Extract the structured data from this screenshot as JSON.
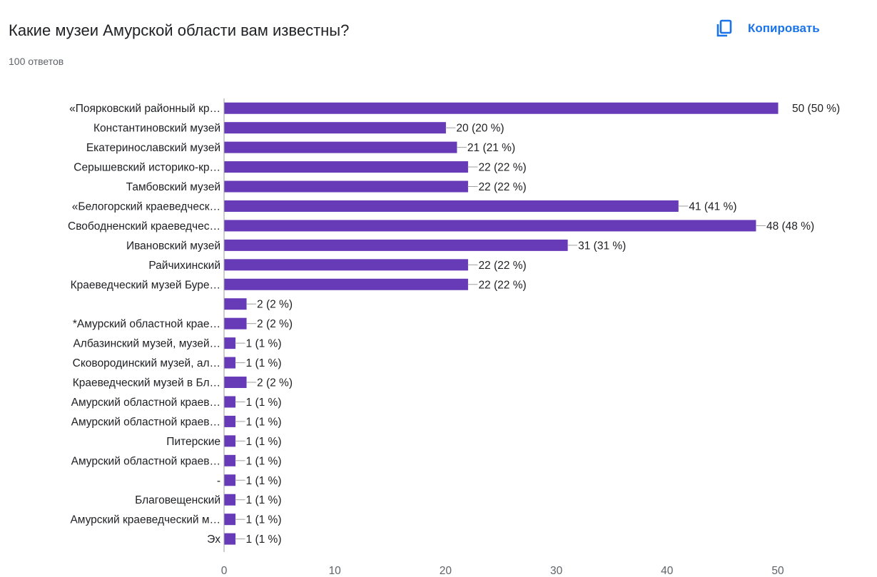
{
  "header": {
    "title": "Какие музеи Амурской области вам известны?",
    "response_count": "100 ответов",
    "copy_label": "Копировать",
    "copy_icon": "copy-icon"
  },
  "colors": {
    "bar": "#673ab7",
    "accent": "#1a73e8",
    "axis": "#9e9e9e",
    "grid": "#e0e0e0"
  },
  "chart_data": {
    "type": "bar",
    "orientation": "horizontal",
    "title": "Какие музеи Амурской области вам известны?",
    "categories": [
      "«Поярковский районный кр…",
      "Константиновский музей",
      "Екатеринославский музей",
      "Серышевский историко-кр…",
      "Тамбовский музей",
      "«Белогорский краеведческ…",
      "Свободненский краеведчес…",
      "Ивановский музей",
      "Райчихинский",
      "Краеведческий музей Буре…",
      "",
      "*Амурский областной крае…",
      "Албазинский музей, музей…",
      "Сковородинский музей, ал…",
      "Краеведческий музей в Бл…",
      "Амурский областной краев…",
      "Амурский областной краев…",
      "Питерские",
      "Амурский областной краев…",
      "-",
      "Благовещенский",
      "Амурский краеведческий м…",
      "Эх"
    ],
    "values": [
      50,
      20,
      21,
      22,
      22,
      41,
      48,
      31,
      22,
      22,
      2,
      2,
      1,
      1,
      2,
      1,
      1,
      1,
      1,
      1,
      1,
      1,
      1
    ],
    "data_labels": [
      "50 (50 %)",
      "20 (20 %)",
      "21 (21 %)",
      "22 (22 %)",
      "22 (22 %)",
      "41 (41 %)",
      "48 (48 %)",
      "31 (31 %)",
      "22 (22 %)",
      "22 (22 %)",
      "2 (2 %)",
      "2 (2 %)",
      "1 (1 %)",
      "1 (1 %)",
      "2 (2 %)",
      "1 (1 %)",
      "1 (1 %)",
      "1 (1 %)",
      "1 (1 %)",
      "1 (1 %)",
      "1 (1 %)",
      "1 (1 %)",
      "1 (1 %)"
    ],
    "x_ticks": [
      0,
      10,
      20,
      30,
      40,
      50
    ],
    "xlim": [
      0,
      50
    ],
    "grid": false,
    "legend": "none"
  }
}
